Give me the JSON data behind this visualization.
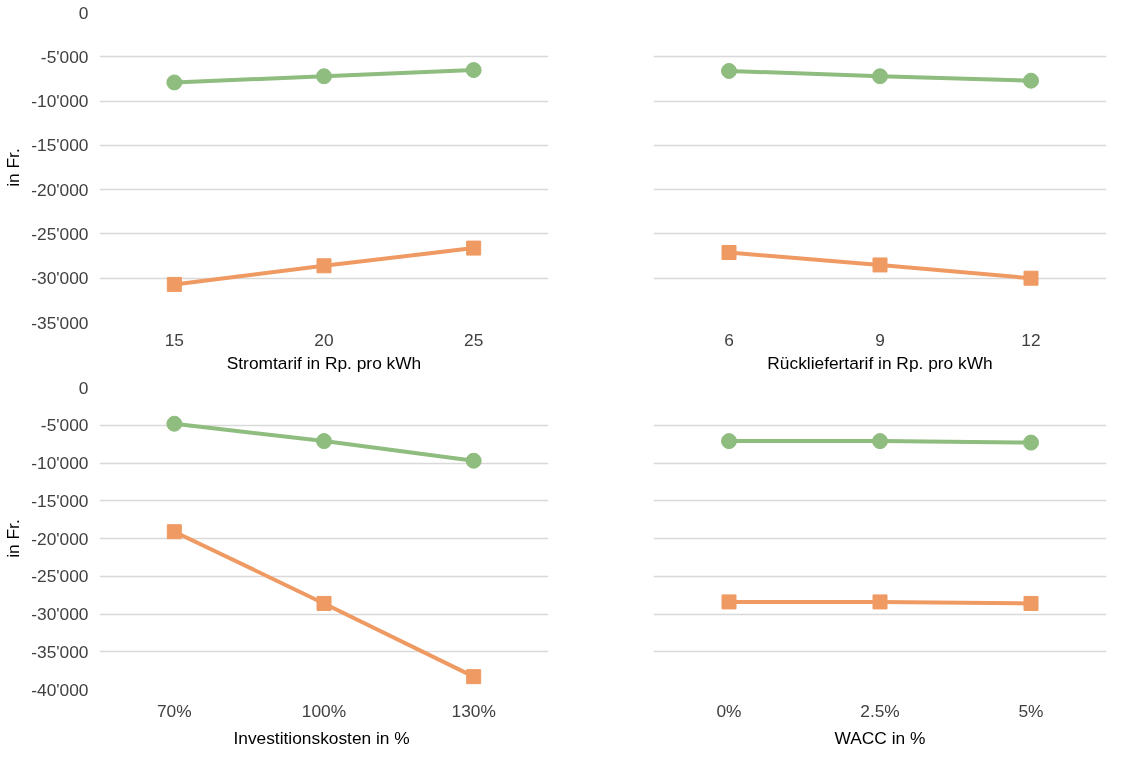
{
  "chart_data": [
    {
      "type": "line",
      "xlabel": "Stromtarif in Rp. pro kWh",
      "ylabel": "in Fr.",
      "categories": [
        "15",
        "20",
        "25"
      ],
      "grid": "y",
      "ylim": [
        -35000,
        0
      ],
      "yticks": [
        {
          "value": -35000,
          "label": "-35'000"
        },
        {
          "value": -30000,
          "label": "-30'000"
        },
        {
          "value": -25000,
          "label": "-25'000"
        },
        {
          "value": -20000,
          "label": "-20'000"
        },
        {
          "value": -15000,
          "label": "-15'000"
        },
        {
          "value": -10000,
          "label": "-10'000"
        },
        {
          "value": -5000,
          "label": "-5'000"
        },
        0
      ],
      "series": [
        {
          "color": "#8fbc7f",
          "marker": "circle",
          "values": [
            -7900,
            -7200,
            -6500
          ]
        },
        {
          "color": "#ee9a62",
          "marker": "square",
          "values": [
            -30700,
            -28600,
            -26600
          ]
        }
      ]
    },
    {
      "type": "line",
      "xlabel": "Rückliefertarif in Rp. pro kWh",
      "categories": [
        "6",
        "9",
        "12"
      ],
      "grid": "y",
      "tick_labels": "x",
      "ylim": [
        -35000,
        0
      ],
      "yticks": [
        {
          "value": -35000,
          "label": null
        },
        {
          "value": -30000,
          "label": null
        },
        {
          "value": -25000,
          "label": null
        },
        {
          "value": -20000,
          "label": null
        },
        {
          "value": -15000,
          "label": null
        },
        {
          "value": -10000,
          "label": null
        },
        {
          "value": -5000,
          "label": null
        },
        {
          "value": 0,
          "label": null
        }
      ],
      "series": [
        {
          "color": "#8fbc7f",
          "marker": "circle",
          "values": [
            -6600,
            -7200,
            -7700
          ]
        },
        {
          "color": "#ee9a62",
          "marker": "square",
          "values": [
            -27100,
            -28500,
            -30000
          ]
        }
      ]
    },
    {
      "type": "line",
      "xlabel": "Investitionskosten  in %",
      "ylabel": "in Fr.",
      "categories": [
        "70%",
        "100%",
        "130%"
      ],
      "grid": "y",
      "ylim": [
        -40000,
        0
      ],
      "yticks": [
        {
          "value": -40000,
          "label": "-40'000"
        },
        {
          "value": -35000,
          "label": "-35'000"
        },
        {
          "value": -30000,
          "label": "-30'000"
        },
        {
          "value": -25000,
          "label": "-25'000"
        },
        {
          "value": -20000,
          "label": "-20'000"
        },
        {
          "value": -15000,
          "label": "-15'000"
        },
        {
          "value": -10000,
          "label": "-10'000"
        },
        {
          "value": -5000,
          "label": "-5'000"
        },
        0
      ],
      "series": [
        {
          "color": "#8fbc7f",
          "marker": "circle",
          "values": [
            -4800,
            -7100,
            -9700
          ]
        },
        {
          "color": "#ee9a62",
          "marker": "square",
          "values": [
            -19100,
            -28600,
            -38300
          ]
        }
      ]
    },
    {
      "type": "line",
      "xlabel": "WACC in %",
      "categories": [
        "0%",
        "2.5%",
        "5%"
      ],
      "grid": "y",
      "tick_labels": "x",
      "ylim": [
        -40000,
        0
      ],
      "yticks": [
        {
          "value": -40000,
          "label": null
        },
        {
          "value": -35000,
          "label": null
        },
        {
          "value": -30000,
          "label": null
        },
        {
          "value": -25000,
          "label": null
        },
        {
          "value": -20000,
          "label": null
        },
        {
          "value": -15000,
          "label": null
        },
        {
          "value": -10000,
          "label": null
        },
        {
          "value": -5000,
          "label": null
        },
        {
          "value": 0,
          "label": null
        }
      ],
      "series": [
        {
          "color": "#8fbc7f",
          "marker": "circle",
          "values": [
            -7100,
            -7100,
            -7300
          ]
        },
        {
          "color": "#ee9a62",
          "marker": "square",
          "values": [
            -28400,
            -28400,
            -28600
          ]
        }
      ]
    }
  ]
}
